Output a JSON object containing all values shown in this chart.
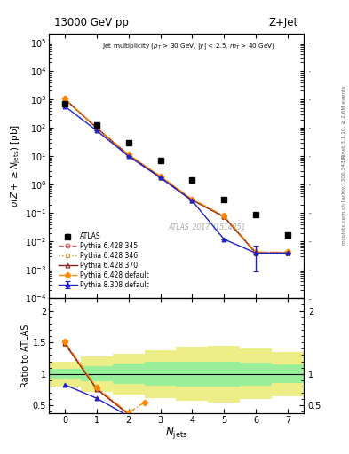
{
  "title_left": "13000 GeV pp",
  "title_right": "Z+Jet",
  "annotation": "Jet multiplicity ($p_T$ > 30 GeV, |y| < 2.5, m$_T$ > 40 GeV)",
  "watermark": "ATLAS_2017_I1514251",
  "ylabel_main": "$\\sigma(Z + \\geq N_{\\rm jets})$ [pb]",
  "ylabel_ratio": "Ratio to ATLAS",
  "xlabel": "$N_{\\rm jets}$",
  "right_label1": "Rivet 3.1.10, ≥ 2.6M events",
  "right_label2": "mcplots.cern.ch [arXiv:1306.3436]",
  "atlas_x": [
    0,
    1,
    2,
    3,
    4,
    5,
    6,
    7
  ],
  "atlas_y": [
    700,
    130,
    30,
    7,
    1.5,
    0.3,
    0.09,
    0.017
  ],
  "atlas_yerr_lo": [
    50,
    10,
    2,
    0.5,
    0.12,
    0.025,
    0.008,
    0.002
  ],
  "atlas_yerr_hi": [
    50,
    10,
    2,
    0.5,
    0.12,
    0.025,
    0.008,
    0.002
  ],
  "py6_345_x": [
    0,
    1,
    2,
    3,
    4,
    5,
    6,
    7
  ],
  "py6_345_y": [
    1050,
    100,
    11,
    1.9,
    0.29,
    0.075,
    0.004,
    0.004
  ],
  "py6_345_color": "#d45f5f",
  "py6_345_label": "Pythia 6.428 345",
  "py6_345_marker": "o",
  "py6_345_ls": "--",
  "py6_345_mfc": "none",
  "py6_346_x": [
    0,
    1,
    2,
    3,
    4,
    5,
    6,
    7
  ],
  "py6_346_y": [
    1030,
    98,
    10.8,
    1.85,
    0.285,
    0.073,
    0.0038,
    0.0038
  ],
  "py6_346_color": "#cc9944",
  "py6_346_label": "Pythia 6.428 346",
  "py6_346_marker": "s",
  "py6_346_ls": ":",
  "py6_346_mfc": "none",
  "py6_370_x": [
    0,
    1,
    2,
    3,
    4,
    5,
    6,
    7
  ],
  "py6_370_y": [
    1040,
    99,
    10.9,
    1.87,
    0.287,
    0.074,
    0.0039,
    0.0039
  ],
  "py6_370_color": "#882222",
  "py6_370_label": "Pythia 6.428 370",
  "py6_370_marker": "^",
  "py6_370_ls": "-",
  "py6_370_mfc": "none",
  "py6_def_x": [
    0,
    1,
    2,
    3,
    4,
    5,
    6,
    7
  ],
  "py6_def_y": [
    1060,
    102,
    11.5,
    2.0,
    0.31,
    0.08,
    0.0042,
    0.0042
  ],
  "py6_def_color": "#ff8800",
  "py6_def_label": "Pythia 6.428 default",
  "py6_def_marker": "D",
  "py6_def_ls": "-.",
  "py6_def_mfc": "#ff8800",
  "py8_def_x": [
    0,
    1,
    2,
    3,
    4,
    5,
    6,
    7
  ],
  "py8_def_y": [
    580,
    80,
    10.0,
    1.75,
    0.27,
    0.012,
    0.0039,
    0.0039
  ],
  "py8_def_yerr_lo": [
    0,
    0,
    0,
    0,
    0,
    0,
    0.003,
    0
  ],
  "py8_def_yerr_hi": [
    0,
    0,
    0,
    0,
    0,
    0,
    0.003,
    0
  ],
  "py8_def_color": "#2222cc",
  "py8_def_label": "Pythia 8.308 default",
  "py8_def_marker": "^",
  "py8_def_ls": "-",
  "py8_def_mfc": "#2222cc",
  "inner_band_color": "#99ee99",
  "outer_band_color": "#eeee88",
  "band_edges": [
    -0.5,
    0.5,
    1.5,
    2.5,
    3.5,
    4.5,
    5.5,
    6.5,
    7.5
  ],
  "inner_lo": [
    0.92,
    0.88,
    0.84,
    0.81,
    0.8,
    0.8,
    0.82,
    0.85,
    0.85
  ],
  "inner_hi": [
    1.08,
    1.12,
    1.16,
    1.19,
    1.2,
    1.2,
    1.18,
    1.15,
    1.15
  ],
  "outer_lo": [
    0.8,
    0.72,
    0.68,
    0.62,
    0.57,
    0.55,
    0.6,
    0.65,
    0.65
  ],
  "outer_hi": [
    1.2,
    1.28,
    1.32,
    1.38,
    1.43,
    1.45,
    1.4,
    1.35,
    1.35
  ],
  "ylim_main": [
    0.0001,
    200000.0
  ],
  "ylim_ratio": [
    0.38,
    2.2
  ],
  "xlim": [
    -0.5,
    7.5
  ]
}
